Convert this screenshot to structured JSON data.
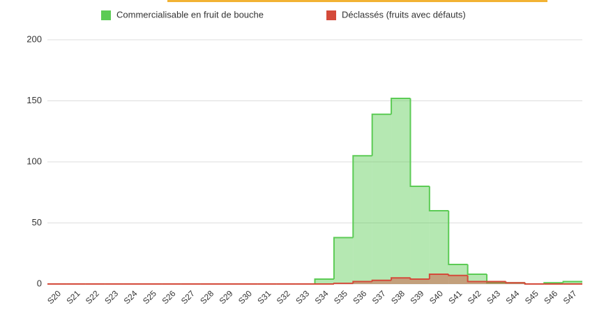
{
  "chart_data": {
    "type": "step-area",
    "categories": [
      "S20",
      "S21",
      "S22",
      "S23",
      "S24",
      "S25",
      "S26",
      "S27",
      "S28",
      "S29",
      "S30",
      "S31",
      "S32",
      "S33",
      "S34",
      "S35",
      "S36",
      "S37",
      "S38",
      "S39",
      "S40",
      "S41",
      "S42",
      "S43",
      "S44",
      "S45",
      "S46",
      "S47"
    ],
    "series": [
      {
        "name": "Commercialisable en fruit de bouche",
        "color": "#5ccb55",
        "values": [
          0,
          0,
          0,
          0,
          0,
          0,
          0,
          0,
          0,
          0,
          0,
          0,
          0,
          0,
          4,
          38,
          105,
          139,
          152,
          80,
          60,
          16,
          8,
          1,
          1,
          0,
          1,
          2
        ]
      },
      {
        "name": "Déclassés (fruits avec défauts)",
        "color": "#d44a3a",
        "values": [
          0,
          0,
          0,
          0,
          0,
          0,
          0,
          0,
          0,
          0,
          0,
          0,
          0,
          0,
          0,
          0.5,
          2,
          3,
          5,
          4,
          8,
          7,
          2,
          2,
          1,
          0,
          0,
          0
        ]
      }
    ],
    "ylim": [
      0,
      200
    ],
    "yticks": [
      0,
      50,
      100,
      150,
      200
    ],
    "grid": true,
    "legend": "top"
  }
}
